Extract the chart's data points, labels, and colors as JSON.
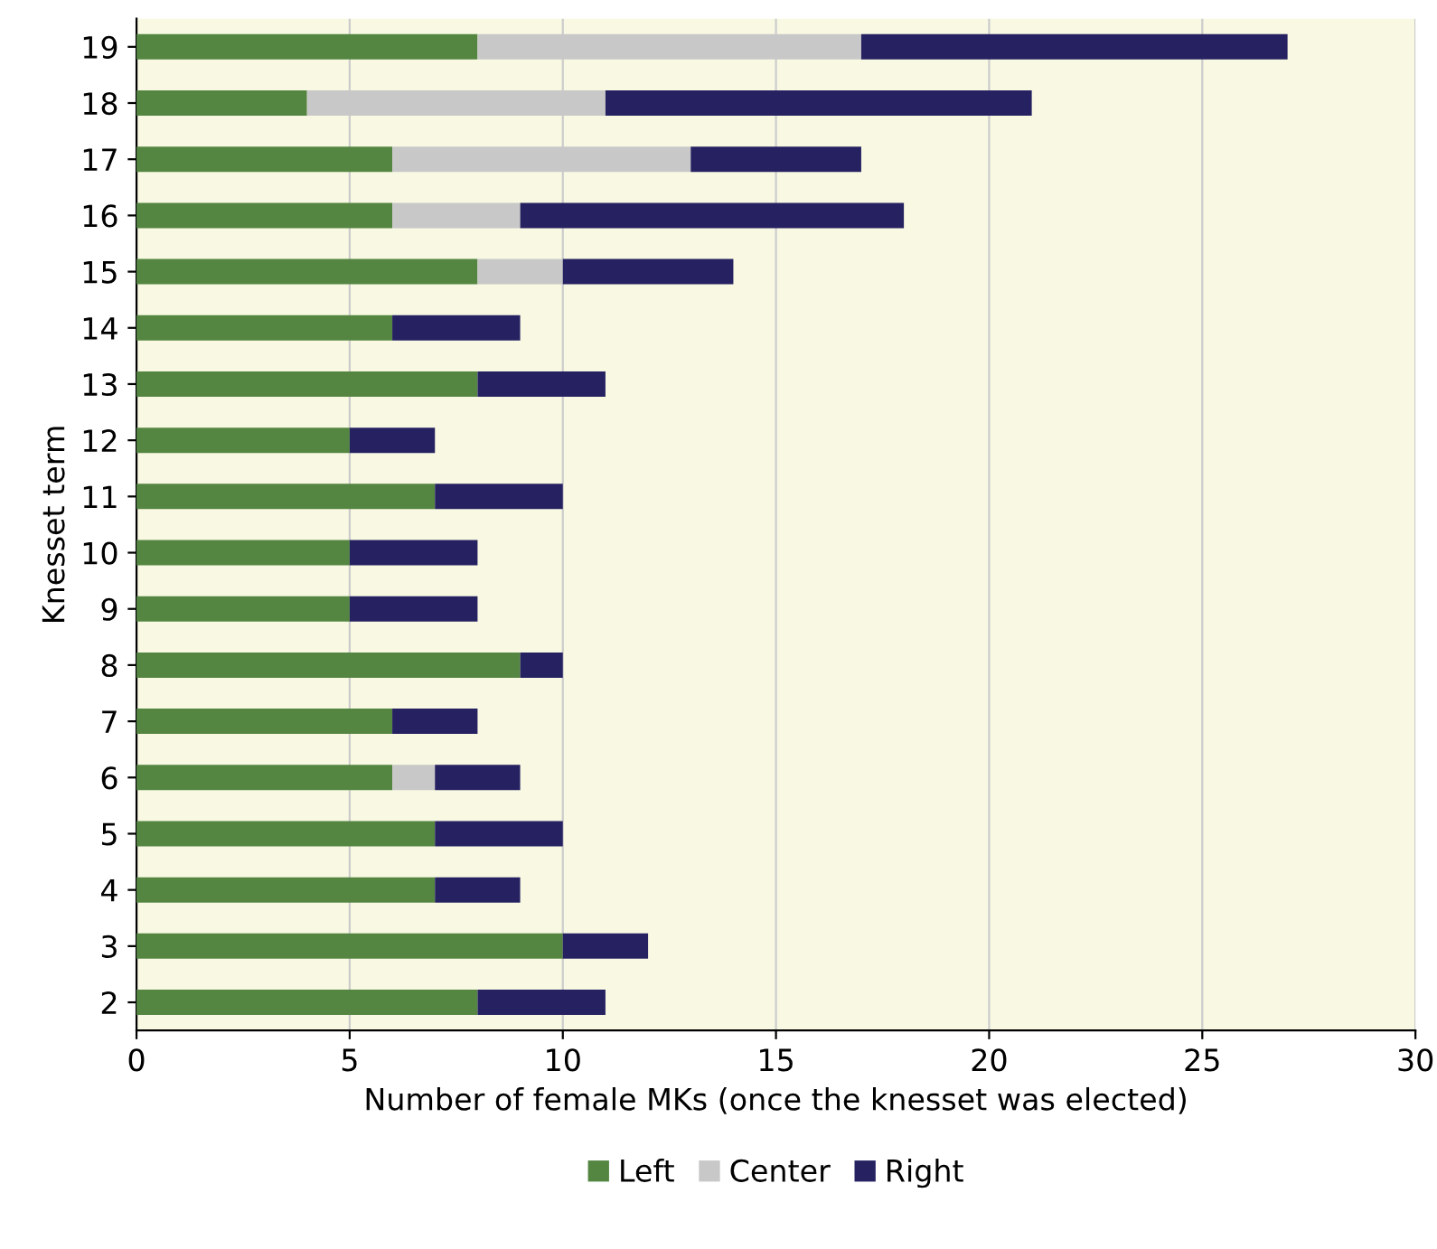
{
  "chart_data": {
    "type": "bar",
    "orientation": "horizontal",
    "stacked": true,
    "xlabel": "Number of female MKs (once the knesset was elected)",
    "ylabel": "Knesset term",
    "categories": [
      "19",
      "18",
      "17",
      "16",
      "15",
      "14",
      "13",
      "12",
      "11",
      "10",
      "9",
      "8",
      "7",
      "6",
      "5",
      "4",
      "3",
      "2"
    ],
    "series": [
      {
        "name": "Left",
        "color": "#548642",
        "values": [
          8,
          4,
          6,
          6,
          8,
          6,
          8,
          5,
          7,
          5,
          5,
          9,
          6,
          6,
          7,
          7,
          10,
          8
        ]
      },
      {
        "name": "Center",
        "color": "#c8c8c8",
        "values": [
          9,
          7,
          7,
          3,
          2,
          0,
          0,
          0,
          0,
          0,
          0,
          0,
          0,
          1,
          0,
          0,
          0,
          0
        ]
      },
      {
        "name": "Right",
        "color": "#262262",
        "values": [
          10,
          10,
          4,
          9,
          4,
          3,
          3,
          2,
          3,
          3,
          3,
          1,
          2,
          2,
          3,
          2,
          2,
          3
        ]
      }
    ],
    "xlim": [
      0,
      30
    ],
    "xticks": [
      0,
      5,
      10,
      15,
      20,
      25,
      30
    ],
    "grid": "x",
    "legend": "bottom"
  }
}
